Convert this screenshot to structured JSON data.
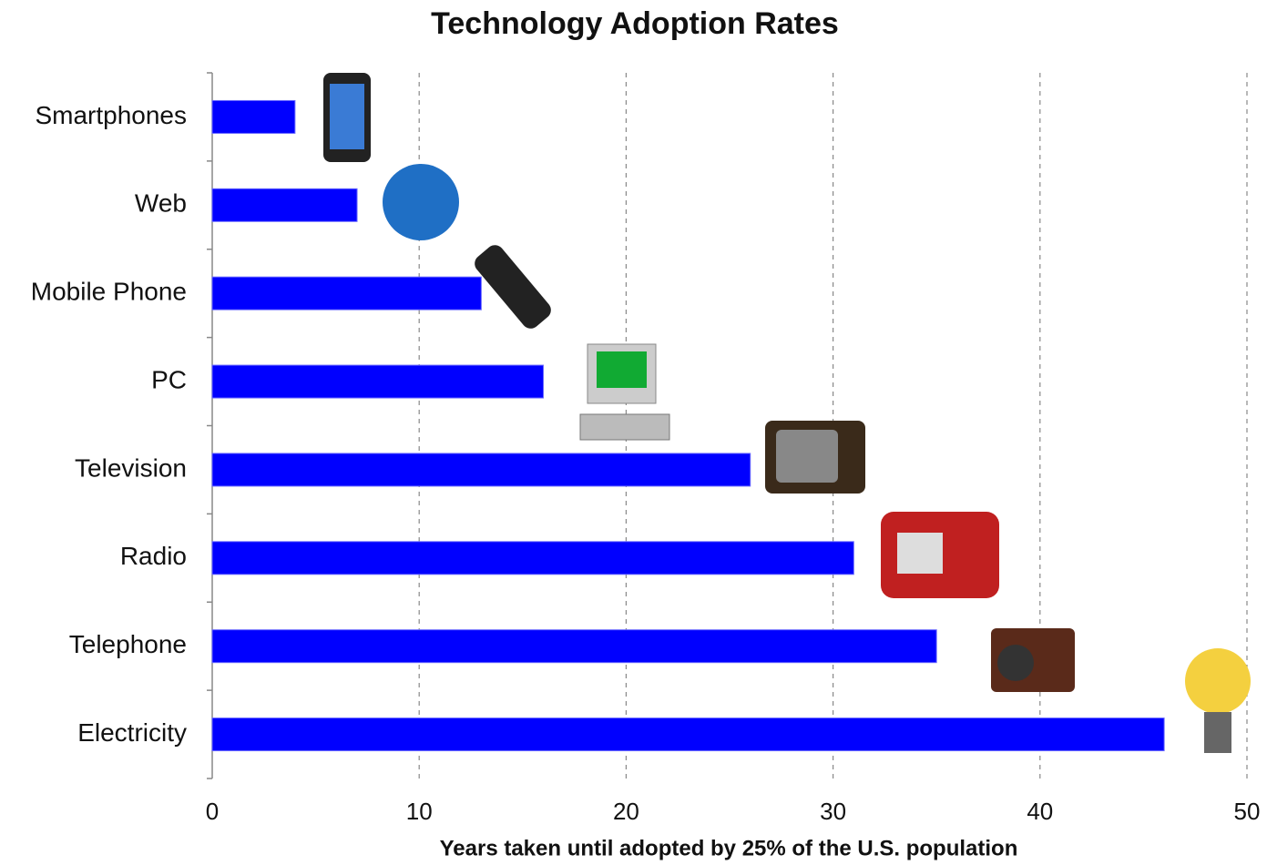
{
  "chart_data": {
    "type": "bar",
    "orientation": "horizontal",
    "title": "Technology Adoption Rates",
    "x_label": "Years taken until adopted by 25% of the U.S. population",
    "categories": [
      "Smartphones",
      "Web",
      "Mobile Phone",
      "PC",
      "Television",
      "Radio",
      "Telephone",
      "Electricity"
    ],
    "values": [
      4,
      7,
      13,
      16,
      26,
      31,
      35,
      46
    ],
    "color": "#0000ff",
    "xlim": [
      0,
      50
    ],
    "xticks": [
      0,
      10,
      20,
      30,
      40,
      50
    ],
    "grid": true
  }
}
